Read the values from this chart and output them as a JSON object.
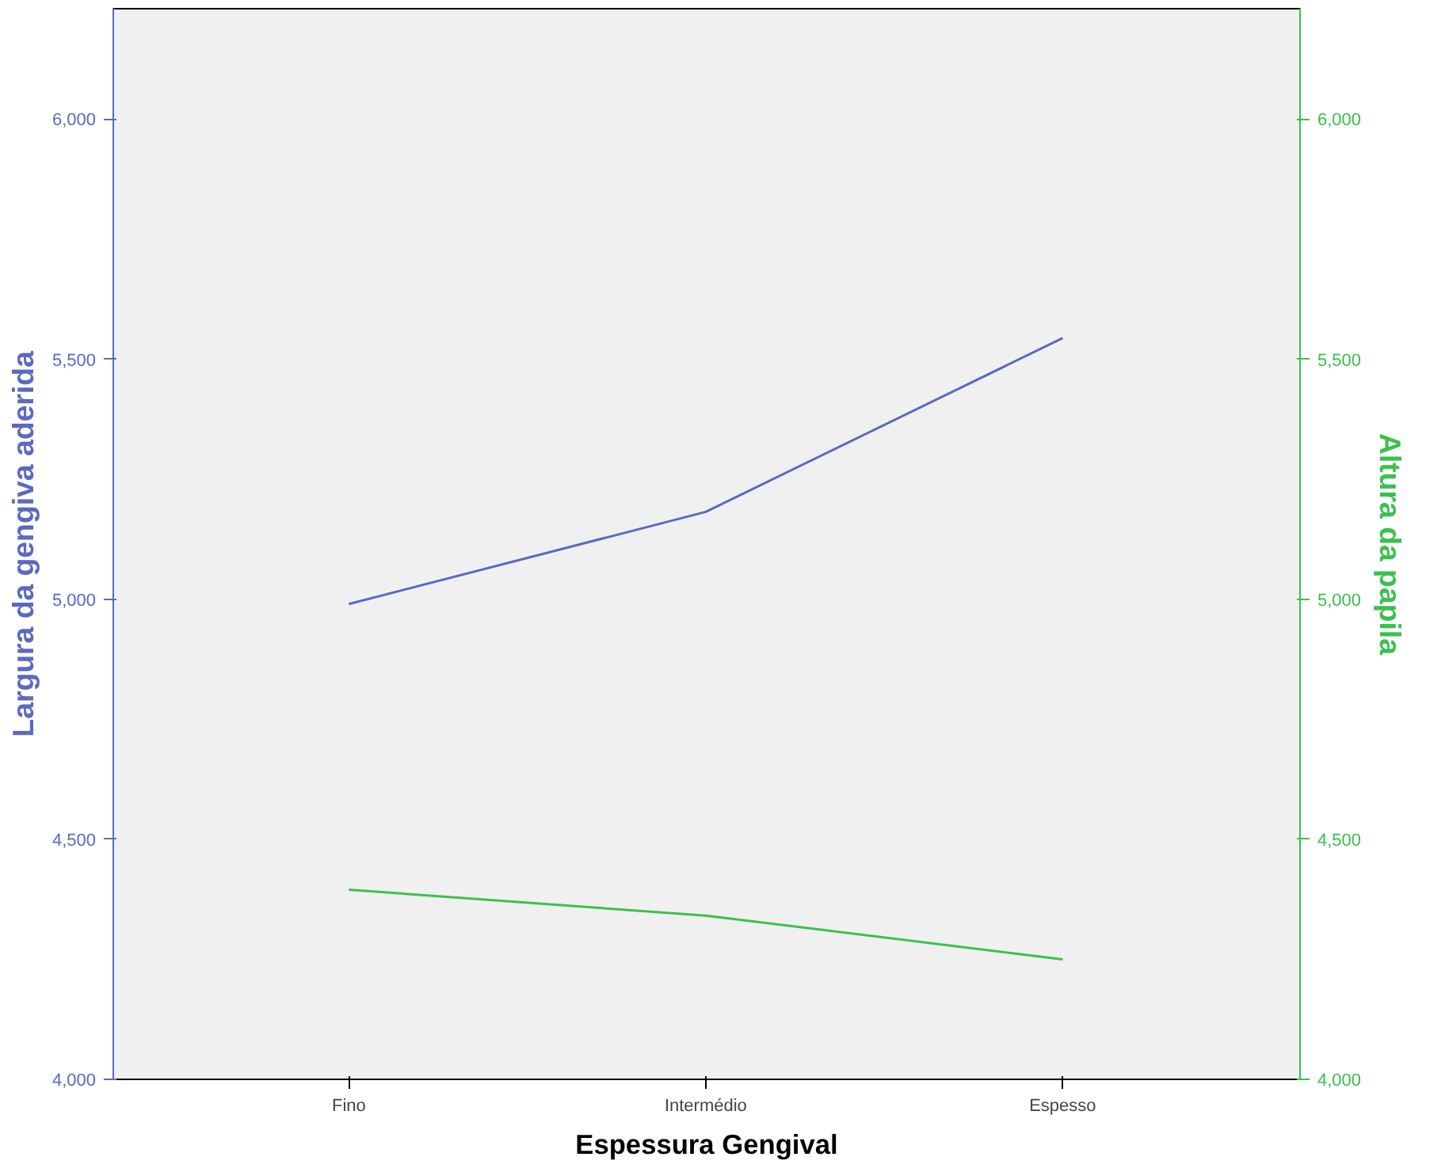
{
  "chart_data": {
    "type": "line",
    "xlabel": "Espessura Gengival",
    "ylabel": "Largura da gengiva aderida",
    "y2label": "Altura da papila",
    "categories": [
      "Fino",
      "Intermédio",
      "Espesso"
    ],
    "series": [
      {
        "color": "#5b6abf",
        "values": [
          4990,
          5182,
          5544
        ]
      },
      {
        "color": "#3cc04d",
        "values": [
          4395,
          4341,
          4250
        ],
        "axis": "y2"
      }
    ],
    "ylim": [
      4000,
      6230
    ],
    "yticks": [
      {
        "value": 4000,
        "label": "4,000"
      },
      {
        "value": 4500,
        "label": "4,500"
      },
      {
        "value": 5000,
        "label": "5,000"
      },
      {
        "value": 5500,
        "label": "5,500"
      },
      {
        "value": 6000,
        "label": "6,000"
      }
    ],
    "y2lim": [
      4000,
      6230
    ],
    "y2ticks": [
      {
        "value": 4000,
        "label": "4,000"
      },
      {
        "value": 4500,
        "label": "4,500"
      },
      {
        "value": 5000,
        "label": "5,000"
      },
      {
        "value": 5500,
        "label": "5,500"
      },
      {
        "value": 6000,
        "label": "6,000"
      }
    ],
    "grid": false
  }
}
